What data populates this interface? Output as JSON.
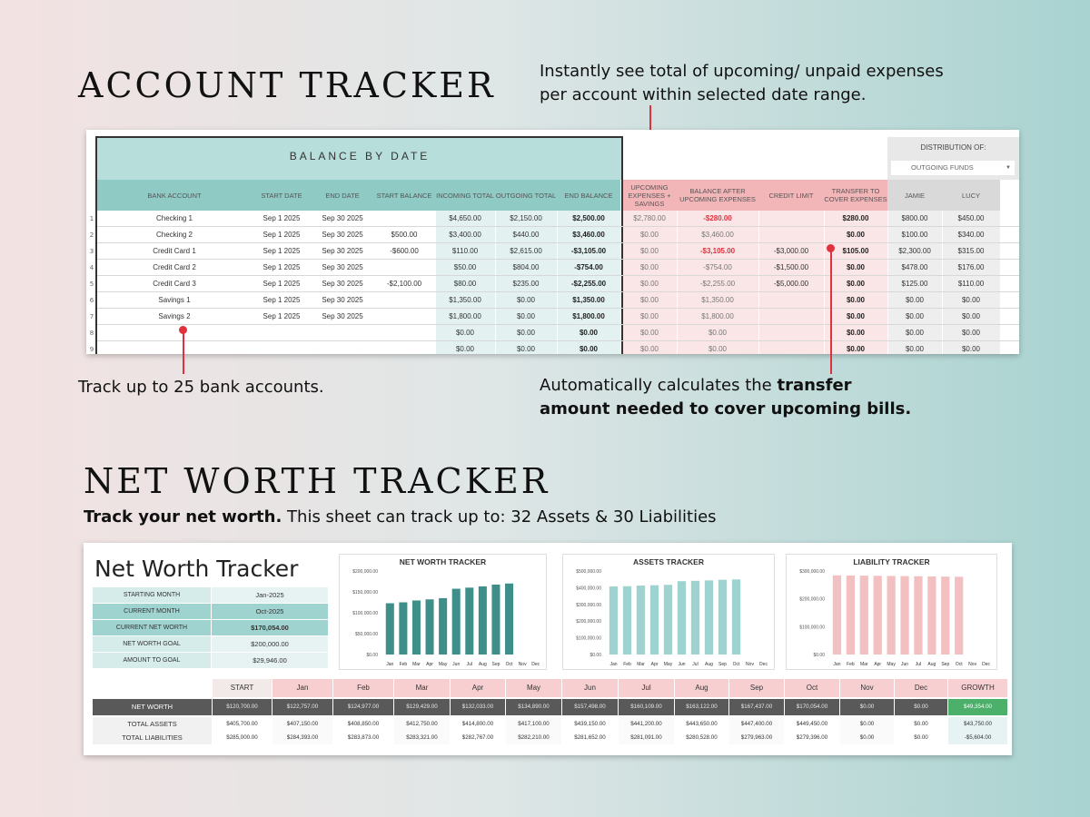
{
  "account_tracker": {
    "heading": "ACCOUNT TRACKER",
    "note_top": "Instantly see total of upcoming/ unpaid expenses per account within selected date range.",
    "note_top_line1": "Instantly see total of upcoming/ unpaid expenses",
    "note_top_line2": "per account within selected date range.",
    "note_left": "Track up to 25 bank accounts.",
    "note_right_plain": "Automatically calculates the ",
    "note_right_bold1": "transfer",
    "note_right_bold2": "amount needed to cover upcoming bills.",
    "sheet_title": "BALANCE BY DATE",
    "distribution_label": "DISTRIBUTION OF:",
    "distribution_select": "OUTGOING FUNDS",
    "columns": [
      "BANK ACCOUNT",
      "START DATE",
      "END DATE",
      "START BALANCE",
      "INCOMING TOTAL",
      "OUTGOING TOTAL",
      "END BALANCE",
      "UPCOMING EXPENSES + SAVINGS",
      "BALANCE AFTER UPCOMING EXPENSES",
      "CREDIT LIMIT",
      "TRANSFER TO COVER EXPENSES",
      "JAMIE",
      "LUCY"
    ],
    "rows": [
      {
        "n": "1",
        "account": "Checking 1",
        "start": "Sep 1 2025",
        "end": "Sep 30 2025",
        "start_bal": "",
        "incoming": "$4,650.00",
        "outgoing": "$2,150.00",
        "end_bal": "$2,500.00",
        "upcoming": "$2,780.00",
        "after": "-$280.00",
        "credit": "",
        "transfer": "$280.00",
        "jamie": "$800.00",
        "lucy": "$450.00"
      },
      {
        "n": "2",
        "account": "Checking 2",
        "start": "Sep 1 2025",
        "end": "Sep 30 2025",
        "start_bal": "$500.00",
        "incoming": "$3,400.00",
        "outgoing": "$440.00",
        "end_bal": "$3,460.00",
        "upcoming": "$0.00",
        "after": "$3,460.00",
        "credit": "",
        "transfer": "$0.00",
        "jamie": "$100.00",
        "lucy": "$340.00"
      },
      {
        "n": "3",
        "account": "Credit Card 1",
        "start": "Sep 1 2025",
        "end": "Sep 30 2025",
        "start_bal": "-$600.00",
        "incoming": "$110.00",
        "outgoing": "$2,615.00",
        "end_bal": "-$3,105.00",
        "upcoming": "$0.00",
        "after": "-$3,105.00",
        "credit": "-$3,000.00",
        "transfer": "$105.00",
        "jamie": "$2,300.00",
        "lucy": "$315.00"
      },
      {
        "n": "4",
        "account": "Credit Card 2",
        "start": "Sep 1 2025",
        "end": "Sep 30 2025",
        "start_bal": "",
        "incoming": "$50.00",
        "outgoing": "$804.00",
        "end_bal": "-$754.00",
        "upcoming": "$0.00",
        "after": "-$754.00",
        "credit": "-$1,500.00",
        "transfer": "$0.00",
        "jamie": "$478.00",
        "lucy": "$176.00"
      },
      {
        "n": "5",
        "account": "Credit Card 3",
        "start": "Sep 1 2025",
        "end": "Sep 30 2025",
        "start_bal": "-$2,100.00",
        "incoming": "$80.00",
        "outgoing": "$235.00",
        "end_bal": "-$2,255.00",
        "upcoming": "$0.00",
        "after": "-$2,255.00",
        "credit": "-$5,000.00",
        "transfer": "$0.00",
        "jamie": "$125.00",
        "lucy": "$110.00"
      },
      {
        "n": "6",
        "account": "Savings 1",
        "start": "Sep 1 2025",
        "end": "Sep 30 2025",
        "start_bal": "",
        "incoming": "$1,350.00",
        "outgoing": "$0.00",
        "end_bal": "$1,350.00",
        "upcoming": "$0.00",
        "after": "$1,350.00",
        "credit": "",
        "transfer": "$0.00",
        "jamie": "$0.00",
        "lucy": "$0.00"
      },
      {
        "n": "7",
        "account": "Savings 2",
        "start": "Sep 1 2025",
        "end": "Sep 30 2025",
        "start_bal": "",
        "incoming": "$1,800.00",
        "outgoing": "$0.00",
        "end_bal": "$1,800.00",
        "upcoming": "$0.00",
        "after": "$1,800.00",
        "credit": "",
        "transfer": "$0.00",
        "jamie": "$0.00",
        "lucy": "$0.00"
      },
      {
        "n": "8",
        "account": "",
        "start": "",
        "end": "",
        "start_bal": "",
        "incoming": "$0.00",
        "outgoing": "$0.00",
        "end_bal": "$0.00",
        "upcoming": "$0.00",
        "after": "$0.00",
        "credit": "",
        "transfer": "$0.00",
        "jamie": "$0.00",
        "lucy": "$0.00"
      },
      {
        "n": "9",
        "account": "",
        "start": "",
        "end": "",
        "start_bal": "",
        "incoming": "$0.00",
        "outgoing": "$0.00",
        "end_bal": "$0.00",
        "upcoming": "$0.00",
        "after": "$0.00",
        "credit": "",
        "transfer": "$0.00",
        "jamie": "$0.00",
        "lucy": "$0.00"
      }
    ],
    "colors": {
      "teal": "#b7dedb",
      "teal_header": "#8fcac5",
      "pink": "#f7d3d4",
      "pink_header": "#f3b6b8",
      "grey": "#d9d9d9",
      "red": "#e0323c"
    }
  },
  "net_worth": {
    "heading": "NET WORTH TRACKER",
    "subtitle_bold": "Track your net worth.",
    "subtitle_rest": " This sheet can track up to: 32 Assets & 30 Liabilities",
    "sheet_title": "Net Worth Tracker",
    "summary": [
      {
        "label": "STARTING MONTH",
        "value": "Jan-2025"
      },
      {
        "label": "CURRENT MONTH",
        "value": "Oct-2025"
      },
      {
        "label": "CURRENT NET WORTH",
        "value": "$170,054.00"
      },
      {
        "label": "NET WORTH GOAL",
        "value": "$200,000.00"
      },
      {
        "label": "AMOUNT TO GOAL",
        "value": "$29,946.00"
      }
    ],
    "table_header": [
      "START",
      "Jan",
      "Feb",
      "Mar",
      "Apr",
      "May",
      "Jun",
      "Jul",
      "Aug",
      "Sep",
      "Oct",
      "Nov",
      "Dec",
      "GROWTH"
    ],
    "table_rows": [
      {
        "label": "NET WORTH",
        "values": [
          "$120,700.00",
          "$122,757.00",
          "$124,977.00",
          "$129,429.00",
          "$132,033.00",
          "$134,890.00",
          "$157,498.00",
          "$160,109.00",
          "$163,122.00",
          "$167,437.00",
          "$170,054.00",
          "$0.00",
          "$0.00",
          "$49,354.00"
        ]
      },
      {
        "label": "TOTAL ASSETS",
        "values": [
          "$405,700.00",
          "$407,150.00",
          "$408,850.00",
          "$412,750.00",
          "$414,800.00",
          "$417,100.00",
          "$439,150.00",
          "$441,200.00",
          "$443,650.00",
          "$447,400.00",
          "$449,450.00",
          "$0.00",
          "$0.00",
          "$43,750.00"
        ]
      },
      {
        "label": "TOTAL LIABILITIES",
        "values": [
          "$285,000.00",
          "$284,393.00",
          "$283,873.00",
          "$283,321.00",
          "$282,767.00",
          "$282,210.00",
          "$281,652.00",
          "$281,091.00",
          "$280,528.00",
          "$279,963.00",
          "$279,396.00",
          "$0.00",
          "$0.00",
          "-$5,604.00"
        ]
      }
    ]
  },
  "chart_data": [
    {
      "type": "bar",
      "title": "NET WORTH TRACKER",
      "categories": [
        "Jan",
        "Feb",
        "Mar",
        "Apr",
        "May",
        "Jun",
        "Jul",
        "Aug",
        "Sep",
        "Oct",
        "Nov",
        "Dec"
      ],
      "values": [
        122757,
        124977,
        129429,
        132033,
        134890,
        157498,
        160109,
        163122,
        167437,
        170054,
        0,
        0
      ],
      "yticks": [
        "$200,000.00",
        "$150,000.00",
        "$100,000.00",
        "$50,000.00",
        "$0.00"
      ],
      "ylim": [
        0,
        200000
      ],
      "color": "#3e8f8a"
    },
    {
      "type": "bar",
      "title": "ASSETS TRACKER",
      "categories": [
        "Jan",
        "Feb",
        "Mar",
        "Apr",
        "May",
        "Jun",
        "Jul",
        "Aug",
        "Sep",
        "Oct",
        "Nov",
        "Dec"
      ],
      "values": [
        407150,
        408850,
        412750,
        414800,
        417100,
        439150,
        441200,
        443650,
        447400,
        449450,
        0,
        0
      ],
      "yticks": [
        "$500,000.00",
        "$400,000.00",
        "$300,000.00",
        "$200,000.00",
        "$100,000.00",
        "$0.00"
      ],
      "ylim": [
        0,
        500000
      ],
      "color": "#9fd3cf"
    },
    {
      "type": "bar",
      "title": "LIABILITY TRACKER",
      "categories": [
        "Jan",
        "Feb",
        "Mar",
        "Apr",
        "May",
        "Jun",
        "Jul",
        "Aug",
        "Sep",
        "Oct",
        "Nov",
        "Dec"
      ],
      "values": [
        284393,
        283873,
        283321,
        282767,
        282210,
        281652,
        281091,
        280528,
        279963,
        279396,
        0,
        0
      ],
      "yticks": [
        "$300,000.00",
        "$200,000.00",
        "$100,000.00",
        "$0.00"
      ],
      "ylim": [
        0,
        300000
      ],
      "color": "#f3c0c2"
    }
  ]
}
